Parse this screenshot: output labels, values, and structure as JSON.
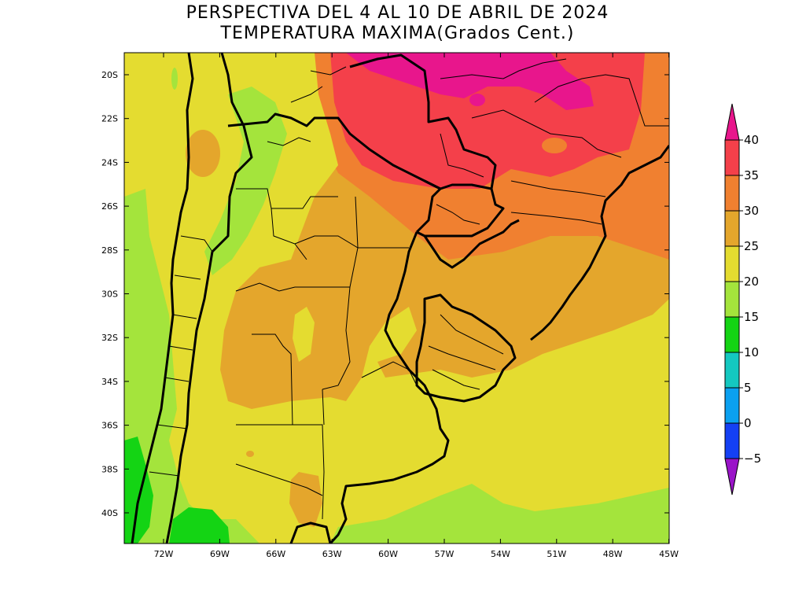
{
  "title": {
    "line1": "PERSPECTIVA DEL 4 AL 10 DE ABRIL DE 2024",
    "line2": "TEMPERATURA MAXIMA(Grados Cent.)"
  },
  "axes": {
    "lat_labels": [
      "20S",
      "22S",
      "24S",
      "26S",
      "28S",
      "30S",
      "32S",
      "34S",
      "36S",
      "38S",
      "40S"
    ],
    "lon_labels": [
      "72W",
      "69W",
      "66W",
      "63W",
      "60W",
      "57W",
      "54W",
      "51W",
      "48W",
      "45W"
    ]
  },
  "colorbar": {
    "labels": [
      "40",
      "35",
      "30",
      "25",
      "20",
      "15",
      "10",
      "5",
      "0",
      "−5"
    ],
    "colors": {
      "above_40": "#e8168c",
      "35_40": "#f4404a",
      "30_35": "#f08030",
      "25_30": "#e4a62c",
      "20_25": "#e4dc30",
      "15_20": "#a4e43c",
      "10_15": "#14d414",
      "5_10": "#14c8c0",
      "0_5": "#0aa0f0",
      "m5_0": "#1440f4",
      "below_m5": "#9a14c8"
    }
  },
  "map_colors": {
    "hot_pink": "#e8168c",
    "red": "#f4404a",
    "orange": "#f08030",
    "amber": "#e4a62c",
    "yellow": "#e4dc30",
    "lightgreen": "#a4e43c",
    "green": "#14d414",
    "border": "#000000"
  }
}
